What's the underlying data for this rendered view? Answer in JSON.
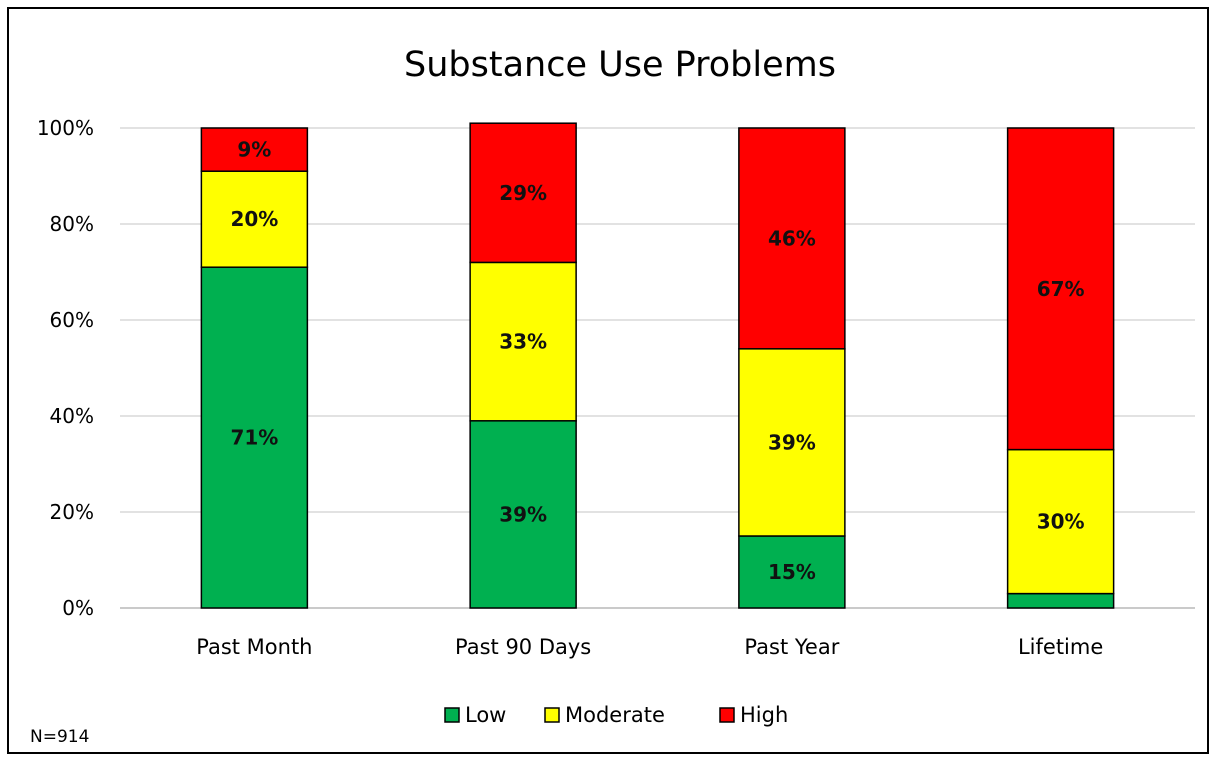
{
  "chart_data": {
    "type": "bar",
    "stacked": true,
    "title": "Substance Use Problems",
    "categories": [
      "Past Month",
      "Past 90 Days",
      "Past Year",
      "Lifetime"
    ],
    "series": [
      {
        "name": "Low",
        "color": "#00B050",
        "values": [
          71,
          39,
          15,
          3
        ],
        "labels": [
          "71%",
          "39%",
          "15%",
          ""
        ]
      },
      {
        "name": "Moderate",
        "color": "#FFFF00",
        "values": [
          20,
          33,
          39,
          30
        ],
        "labels": [
          "20%",
          "33%",
          "39%",
          "30%"
        ]
      },
      {
        "name": "High",
        "color": "#FF0000",
        "values": [
          9,
          29,
          46,
          67
        ],
        "labels": [
          "9%",
          "29%",
          "46%",
          "67%"
        ]
      }
    ],
    "ylim": [
      0,
      100
    ],
    "yticks": [
      0,
      20,
      40,
      60,
      80,
      100
    ],
    "ytick_labels": [
      "0%",
      "20%",
      "40%",
      "60%",
      "80%",
      "100%"
    ],
    "xlabel": "",
    "ylabel": "",
    "grid": true,
    "legend_position": "bottom"
  },
  "footnote": "N=914"
}
